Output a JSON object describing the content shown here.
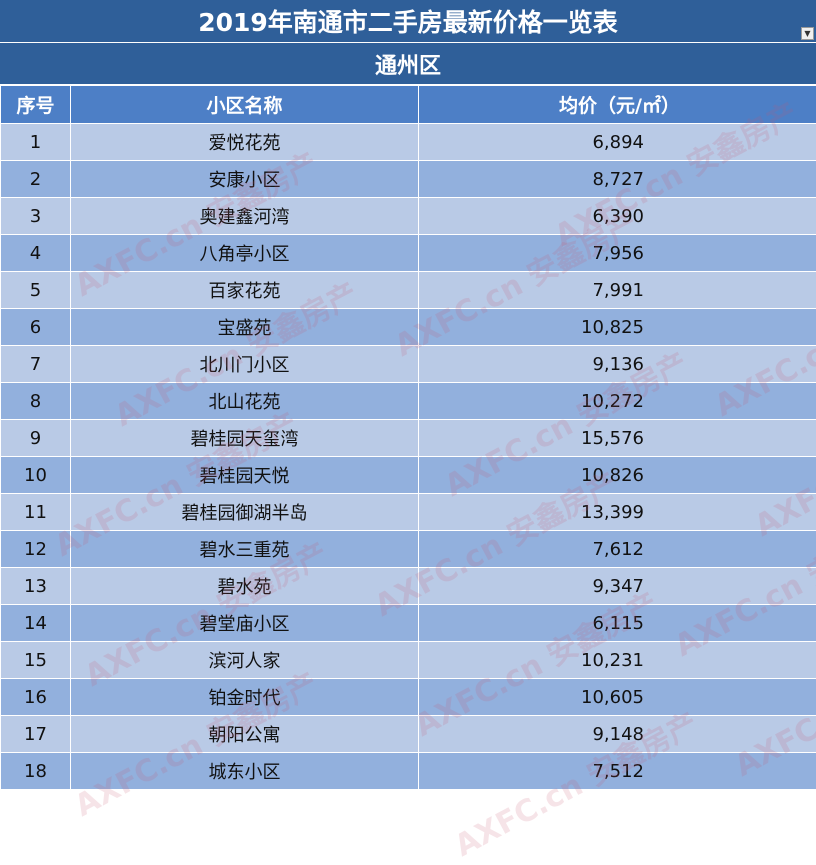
{
  "sheet": {
    "title": "2019年南通市二手房最新价格一览表",
    "district": "通州区",
    "filter_icon": "dropdown-arrow-icon"
  },
  "table": {
    "headers": {
      "no": "序号",
      "name": "小区名称",
      "price": "均价（元/㎡）"
    },
    "rows": [
      {
        "no": "1",
        "name": "爱悦花苑",
        "price": "6,894"
      },
      {
        "no": "2",
        "name": "安康小区",
        "price": "8,727"
      },
      {
        "no": "3",
        "name": "奥建鑫河湾",
        "price": "6,390"
      },
      {
        "no": "4",
        "name": "八角亭小区",
        "price": "7,956"
      },
      {
        "no": "5",
        "name": "百家花苑",
        "price": "7,991"
      },
      {
        "no": "6",
        "name": "宝盛苑",
        "price": "10,825"
      },
      {
        "no": "7",
        "name": "北川门小区",
        "price": "9,136"
      },
      {
        "no": "8",
        "name": "北山花苑",
        "price": "10,272"
      },
      {
        "no": "9",
        "name": "碧桂园天玺湾",
        "price": "15,576"
      },
      {
        "no": "10",
        "name": "碧桂园天悦",
        "price": "10,826"
      },
      {
        "no": "11",
        "name": "碧桂园御湖半岛",
        "price": "13,399"
      },
      {
        "no": "12",
        "name": "碧水三重苑",
        "price": "7,612"
      },
      {
        "no": "13",
        "name": "碧水苑",
        "price": "9,347"
      },
      {
        "no": "14",
        "name": "碧堂庙小区",
        "price": "6,115"
      },
      {
        "no": "15",
        "name": "滨河人家",
        "price": "10,231"
      },
      {
        "no": "16",
        "name": "铂金时代",
        "price": "10,605"
      },
      {
        "no": "17",
        "name": "朝阳公寓",
        "price": "9,148"
      },
      {
        "no": "18",
        "name": "城东小区",
        "price": "7,512"
      }
    ]
  },
  "watermark": {
    "text": "AXFC.cn 安鑫房产"
  }
}
